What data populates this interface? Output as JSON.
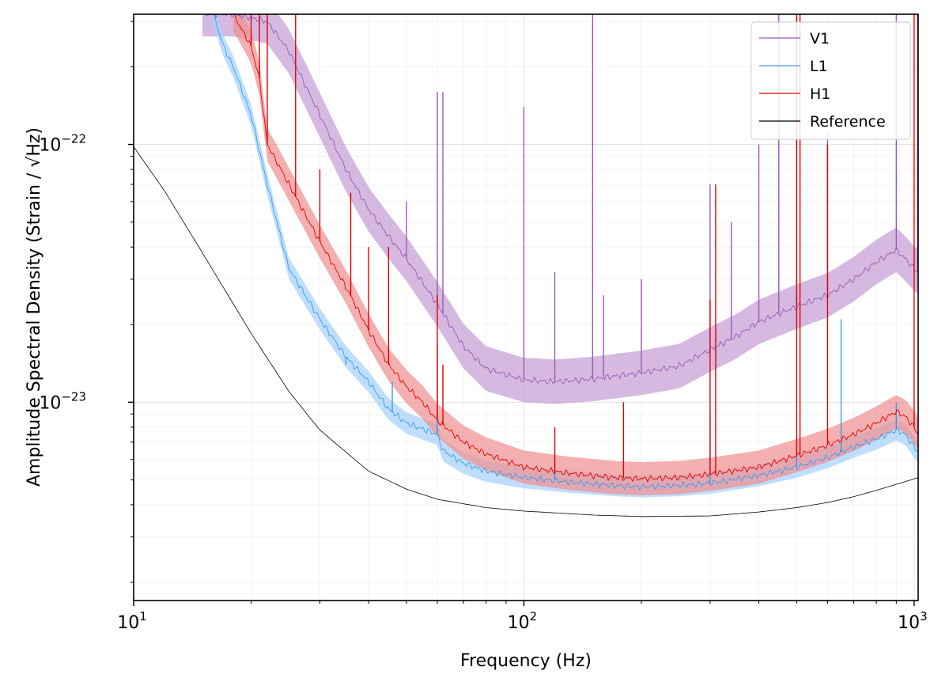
{
  "chart_data": {
    "type": "line",
    "xlabel": "Frequency (Hz)",
    "ylabel": "Amplitude Spectral Density (Strain / √Hz)",
    "xscale": "log",
    "yscale": "log",
    "xlim": [
      10,
      1024
    ],
    "ylim": [
      1.7e-24,
      3.2e-22
    ],
    "x_ticks": [
      {
        "value": 10,
        "base": "10",
        "exp": "1"
      },
      {
        "value": 100,
        "base": "10",
        "exp": "2"
      },
      {
        "value": 1000,
        "base": "10",
        "exp": "3"
      }
    ],
    "y_ticks": [
      {
        "value": 1e-23,
        "base": "10",
        "exp": "−23"
      },
      {
        "value": 1e-22,
        "base": "10",
        "exp": "−22"
      }
    ],
    "grid": true,
    "legend_position": "top-right",
    "series": [
      {
        "name": "V1",
        "color": "#9b59b6",
        "band_color": "#c39bd3",
        "median": [
          [
            15,
            3.2e-22
          ],
          [
            18,
            3.2e-22
          ],
          [
            22,
            3e-22
          ],
          [
            25,
            2.3e-22
          ],
          [
            30,
            1.3e-22
          ],
          [
            35,
            8e-23
          ],
          [
            40,
            5.6e-23
          ],
          [
            45,
            4.4e-23
          ],
          [
            50,
            3.6e-23
          ],
          [
            60,
            2.4e-23
          ],
          [
            70,
            1.65e-23
          ],
          [
            80,
            1.35e-23
          ],
          [
            100,
            1.22e-23
          ],
          [
            120,
            1.2e-23
          ],
          [
            150,
            1.23e-23
          ],
          [
            200,
            1.3e-23
          ],
          [
            250,
            1.38e-23
          ],
          [
            300,
            1.6e-23
          ],
          [
            350,
            1.8e-23
          ],
          [
            400,
            2.05e-23
          ],
          [
            500,
            2.35e-23
          ],
          [
            600,
            2.6e-23
          ],
          [
            700,
            3e-23
          ],
          [
            800,
            3.5e-23
          ],
          [
            900,
            3.9e-23
          ],
          [
            950,
            3.6e-23
          ],
          [
            1000,
            3.3e-23
          ],
          [
            1024,
            3.2e-23
          ]
        ],
        "band_factor": 1.22,
        "spikes": [
          [
            50,
            6e-23
          ],
          [
            60,
            1.6e-22
          ],
          [
            62,
            1.6e-22
          ],
          [
            100,
            1.4e-22
          ],
          [
            120,
            3.2e-23
          ],
          [
            150,
            3.2e-22
          ],
          [
            160,
            2.6e-23
          ],
          [
            200,
            3e-23
          ],
          [
            300,
            7e-23
          ],
          [
            340,
            5e-23
          ],
          [
            400,
            1e-22
          ],
          [
            450,
            3.2e-22
          ],
          [
            500,
            3.2e-22
          ],
          [
            600,
            1.1e-22
          ],
          [
            900,
            3.2e-22
          ],
          [
            1020,
            3.2e-22
          ]
        ],
        "line_width": 0.9
      },
      {
        "name": "L1",
        "color": "#3a9bef",
        "band_color": "#a9d3fc",
        "median": [
          [
            16,
            3.2e-22
          ],
          [
            17,
            2.4e-22
          ],
          [
            18,
            2e-22
          ],
          [
            20,
            1.3e-22
          ],
          [
            22,
            7e-23
          ],
          [
            25,
            3.3e-23
          ],
          [
            30,
            2.1e-23
          ],
          [
            35,
            1.5e-23
          ],
          [
            40,
            1.2e-23
          ],
          [
            45,
            9.4e-24
          ],
          [
            50,
            8.3e-24
          ],
          [
            60,
            7.5e-24
          ],
          [
            62,
            6.5e-24
          ],
          [
            70,
            5.8e-24
          ],
          [
            80,
            5.4e-24
          ],
          [
            100,
            5.1e-24
          ],
          [
            130,
            4.9e-24
          ],
          [
            170,
            4.75e-24
          ],
          [
            200,
            4.7e-24
          ],
          [
            250,
            4.75e-24
          ],
          [
            300,
            4.85e-24
          ],
          [
            400,
            5.2e-24
          ],
          [
            500,
            5.6e-24
          ],
          [
            600,
            6.1e-24
          ],
          [
            700,
            6.7e-24
          ],
          [
            800,
            7.2e-24
          ],
          [
            900,
            7.8e-24
          ],
          [
            950,
            7.5e-24
          ],
          [
            1000,
            6.7e-24
          ],
          [
            1024,
            6.4e-24
          ]
        ],
        "band_factor": 1.1,
        "spikes": [
          [
            35,
            1.4e-23
          ],
          [
            46,
            1.2e-23
          ],
          [
            60,
            1.7e-23
          ],
          [
            120,
            6e-24
          ],
          [
            300,
            9e-24
          ],
          [
            500,
            6.5e-24
          ],
          [
            650,
            2.1e-23
          ],
          [
            900,
            1e-23
          ]
        ],
        "line_width": 0.9
      },
      {
        "name": "H1",
        "color": "#e60000",
        "band_color": "#ef8e8e",
        "median": [
          [
            18,
            3.2e-22
          ],
          [
            20,
            2.4e-22
          ],
          [
            21,
            1.8e-22
          ],
          [
            22,
            1e-22
          ],
          [
            25,
            7e-23
          ],
          [
            30,
            4.2e-23
          ],
          [
            35,
            2.8e-23
          ],
          [
            40,
            1.9e-23
          ],
          [
            45,
            1.4e-23
          ],
          [
            50,
            1.15e-23
          ],
          [
            55,
            1e-23
          ],
          [
            60,
            8.5e-24
          ],
          [
            70,
            7e-24
          ],
          [
            80,
            6.3e-24
          ],
          [
            100,
            5.6e-24
          ],
          [
            130,
            5.3e-24
          ],
          [
            170,
            5.1e-24
          ],
          [
            200,
            5.05e-24
          ],
          [
            250,
            5.1e-24
          ],
          [
            300,
            5.25e-24
          ],
          [
            400,
            5.6e-24
          ],
          [
            500,
            6.2e-24
          ],
          [
            600,
            6.8e-24
          ],
          [
            700,
            7.5e-24
          ],
          [
            800,
            8.3e-24
          ],
          [
            900,
            9.2e-24
          ],
          [
            950,
            8.8e-24
          ],
          [
            1000,
            8e-24
          ],
          [
            1024,
            7.5e-24
          ]
        ],
        "band_factor": 1.16,
        "spikes": [
          [
            20,
            3.2e-22
          ],
          [
            21,
            3.2e-22
          ],
          [
            22,
            3.2e-22
          ],
          [
            26,
            3.2e-22
          ],
          [
            30,
            8e-23
          ],
          [
            36,
            6.5e-23
          ],
          [
            40,
            4e-23
          ],
          [
            45,
            4e-23
          ],
          [
            60,
            2.6e-23
          ],
          [
            62,
            1.4e-23
          ],
          [
            120,
            8e-24
          ],
          [
            180,
            1e-23
          ],
          [
            300,
            2.5e-23
          ],
          [
            310,
            7e-23
          ],
          [
            500,
            3.2e-22
          ],
          [
            510,
            3.2e-22
          ],
          [
            600,
            1e-22
          ],
          [
            1000,
            3.2e-22
          ]
        ],
        "line_width": 0.9
      },
      {
        "name": "Reference",
        "color": "#000000",
        "median": [
          [
            10,
            9.8e-23
          ],
          [
            12,
            6.6e-23
          ],
          [
            15,
            3.8e-23
          ],
          [
            20,
            1.85e-23
          ],
          [
            25,
            1.1e-23
          ],
          [
            30,
            7.8e-24
          ],
          [
            40,
            5.4e-24
          ],
          [
            50,
            4.6e-24
          ],
          [
            60,
            4.2e-24
          ],
          [
            80,
            3.9e-24
          ],
          [
            100,
            3.78e-24
          ],
          [
            150,
            3.65e-24
          ],
          [
            200,
            3.6e-24
          ],
          [
            300,
            3.62e-24
          ],
          [
            400,
            3.75e-24
          ],
          [
            500,
            3.9e-24
          ],
          [
            600,
            4.08e-24
          ],
          [
            700,
            4.3e-24
          ],
          [
            800,
            4.55e-24
          ],
          [
            900,
            4.8e-24
          ],
          [
            1024,
            5.1e-24
          ]
        ],
        "line_width": 0.8
      }
    ]
  }
}
